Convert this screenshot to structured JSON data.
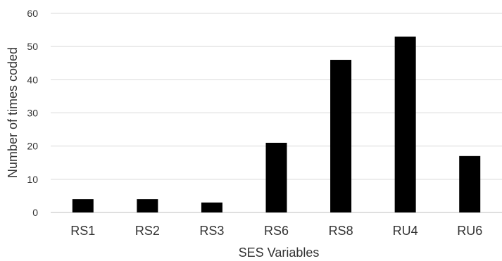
{
  "chart_data": {
    "type": "bar",
    "title": "",
    "xlabel": "SES Variables",
    "ylabel": "Number of times coded",
    "categories": [
      "RS1",
      "RS2",
      "RS3",
      "RS6",
      "RS8",
      "RU4",
      "RU6"
    ],
    "values": [
      4,
      4,
      3,
      21,
      46,
      53,
      17
    ],
    "ylim": [
      0,
      60
    ],
    "yticks": [
      0,
      10,
      20,
      30,
      40,
      50,
      60
    ],
    "grid": true,
    "legend": "none",
    "colors": {
      "bar": "#000000",
      "grid": "#d9d9d9",
      "axis": "#bfbfbf",
      "text": "#333333"
    }
  }
}
